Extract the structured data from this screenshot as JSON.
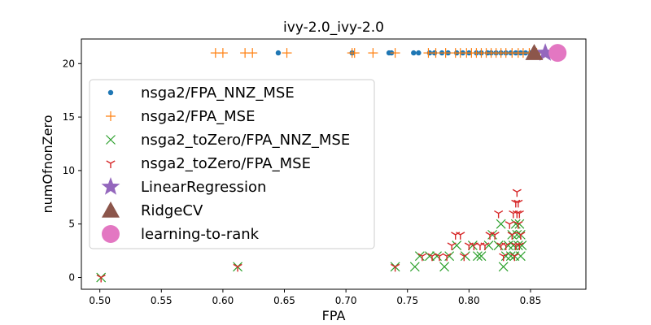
{
  "chart_data": {
    "type": "scatter",
    "title": "ivy-2.0_ivy-2.0",
    "xlabel": "FPA",
    "ylabel": "numOfnonZero",
    "xlim": [
      0.485,
      0.895
    ],
    "ylim": [
      -1.1,
      22.3
    ],
    "xticks": [
      0.5,
      0.55,
      0.6,
      0.65,
      0.7,
      0.75,
      0.8,
      0.85
    ],
    "xtick_labels": [
      "0.50",
      "0.55",
      "0.60",
      "0.65",
      "0.70",
      "0.75",
      "0.80",
      "0.85"
    ],
    "yticks": [
      0,
      5,
      10,
      15,
      20
    ],
    "ytick_labels": [
      "0",
      "5",
      "10",
      "15",
      "20"
    ],
    "grid": false,
    "legend_position": "center-left",
    "series": [
      {
        "name": "nsga2/FPA_NNZ_MSE",
        "marker": "dot",
        "color": "#1f77b4",
        "points": [
          [
            0.645,
            21
          ],
          [
            0.705,
            21
          ],
          [
            0.735,
            21
          ],
          [
            0.737,
            21
          ],
          [
            0.755,
            21
          ],
          [
            0.759,
            21
          ],
          [
            0.768,
            21
          ],
          [
            0.772,
            21
          ],
          [
            0.778,
            21
          ],
          [
            0.783,
            21
          ],
          [
            0.79,
            21
          ],
          [
            0.795,
            21
          ],
          [
            0.8,
            21
          ],
          [
            0.806,
            21
          ],
          [
            0.81,
            21
          ],
          [
            0.815,
            21
          ],
          [
            0.818,
            21
          ],
          [
            0.822,
            21
          ],
          [
            0.826,
            21
          ],
          [
            0.83,
            21
          ],
          [
            0.834,
            21
          ],
          [
            0.838,
            21
          ],
          [
            0.842,
            21
          ],
          [
            0.846,
            21
          ],
          [
            0.85,
            21
          ],
          [
            0.856,
            21
          ],
          [
            0.862,
            21
          ]
        ]
      },
      {
        "name": "nsga2/FPA_MSE",
        "marker": "plus",
        "color": "#ff7f0e",
        "points": [
          [
            0.594,
            21
          ],
          [
            0.6,
            21
          ],
          [
            0.618,
            21
          ],
          [
            0.624,
            21
          ],
          [
            0.652,
            21
          ],
          [
            0.705,
            21
          ],
          [
            0.707,
            21
          ],
          [
            0.722,
            21
          ],
          [
            0.74,
            21
          ],
          [
            0.767,
            21
          ],
          [
            0.773,
            21
          ],
          [
            0.781,
            21
          ],
          [
            0.789,
            21
          ],
          [
            0.793,
            21
          ],
          [
            0.798,
            21
          ],
          [
            0.802,
            21
          ],
          [
            0.806,
            21
          ],
          [
            0.81,
            21
          ],
          [
            0.814,
            21
          ],
          [
            0.818,
            21
          ],
          [
            0.822,
            21
          ],
          [
            0.826,
            21
          ],
          [
            0.83,
            21
          ],
          [
            0.835,
            21
          ],
          [
            0.84,
            21
          ],
          [
            0.844,
            21
          ],
          [
            0.849,
            21
          ],
          [
            0.855,
            21
          ],
          [
            0.861,
            21
          ],
          [
            0.866,
            21
          ]
        ]
      },
      {
        "name": "nsga2_toZero/FPA_NNZ_MSE",
        "marker": "x",
        "color": "#2ca02c",
        "points": [
          [
            0.501,
            0
          ],
          [
            0.612,
            1
          ],
          [
            0.74,
            1
          ],
          [
            0.756,
            1
          ],
          [
            0.76,
            2
          ],
          [
            0.768,
            2
          ],
          [
            0.774,
            2
          ],
          [
            0.78,
            1
          ],
          [
            0.784,
            2
          ],
          [
            0.79,
            3
          ],
          [
            0.797,
            2
          ],
          [
            0.803,
            3
          ],
          [
            0.807,
            2
          ],
          [
            0.81,
            2
          ],
          [
            0.816,
            3
          ],
          [
            0.819,
            4
          ],
          [
            0.824,
            3
          ],
          [
            0.826,
            5
          ],
          [
            0.828,
            1
          ],
          [
            0.83,
            2
          ],
          [
            0.832,
            3
          ],
          [
            0.834,
            2
          ],
          [
            0.835,
            4
          ],
          [
            0.836,
            3
          ],
          [
            0.837,
            2
          ],
          [
            0.838,
            5
          ],
          [
            0.839,
            4
          ],
          [
            0.84,
            3
          ],
          [
            0.841,
            5
          ],
          [
            0.842,
            4
          ],
          [
            0.843,
            3
          ],
          [
            0.842,
            2
          ]
        ]
      },
      {
        "name": "nsga2_toZero/FPA_MSE",
        "marker": "tri_down",
        "color": "#d62728",
        "points": [
          [
            0.501,
            0
          ],
          [
            0.612,
            1
          ],
          [
            0.74,
            1
          ],
          [
            0.762,
            2
          ],
          [
            0.77,
            2
          ],
          [
            0.776,
            2
          ],
          [
            0.782,
            2
          ],
          [
            0.786,
            3
          ],
          [
            0.789,
            4
          ],
          [
            0.793,
            4
          ],
          [
            0.796,
            2
          ],
          [
            0.8,
            3
          ],
          [
            0.804,
            3
          ],
          [
            0.809,
            3
          ],
          [
            0.813,
            3
          ],
          [
            0.817,
            4
          ],
          [
            0.821,
            4
          ],
          [
            0.824,
            6
          ],
          [
            0.826,
            3
          ],
          [
            0.828,
            2
          ],
          [
            0.83,
            3
          ],
          [
            0.833,
            5
          ],
          [
            0.835,
            4
          ],
          [
            0.836,
            6
          ],
          [
            0.837,
            2
          ],
          [
            0.838,
            7
          ],
          [
            0.838,
            3
          ],
          [
            0.839,
            8
          ],
          [
            0.839,
            6
          ],
          [
            0.84,
            7
          ],
          [
            0.84,
            5
          ],
          [
            0.841,
            6
          ],
          [
            0.841,
            3
          ],
          [
            0.842,
            4
          ]
        ]
      },
      {
        "name": "LinearRegression",
        "marker": "star",
        "color": "#9467bd",
        "points": [
          [
            0.862,
            21
          ]
        ]
      },
      {
        "name": "RidgeCV",
        "marker": "triangle",
        "color": "#8c564b",
        "points": [
          [
            0.853,
            21
          ]
        ]
      },
      {
        "name": "learning-to-rank",
        "marker": "circle",
        "color": "#e377c2",
        "points": [
          [
            0.872,
            21
          ]
        ]
      }
    ]
  }
}
